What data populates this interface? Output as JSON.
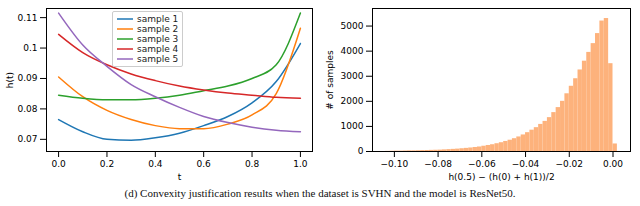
{
  "caption": "(d) Convexity justification results when the dataset is SVHN and the model is ResNet50.",
  "chart_data": [
    {
      "type": "line",
      "x_label": "t",
      "y_label": "h(t)",
      "x": [
        0,
        0.1,
        0.2,
        0.3,
        0.4,
        0.5,
        0.6,
        0.7,
        0.8,
        0.9,
        1.0
      ],
      "series": [
        {
          "name": "sample 1",
          "color": "#1f77b4",
          "values": [
            0.0765,
            0.0725,
            0.07,
            0.0697,
            0.0705,
            0.072,
            0.0745,
            0.0775,
            0.082,
            0.089,
            0.1015
          ]
        },
        {
          "name": "sample 2",
          "color": "#ff7f0e",
          "values": [
            0.0905,
            0.084,
            0.0795,
            0.0765,
            0.0745,
            0.0735,
            0.0735,
            0.075,
            0.078,
            0.085,
            0.1065
          ]
        },
        {
          "name": "sample 3",
          "color": "#2ca02c",
          "values": [
            0.0845,
            0.0835,
            0.083,
            0.083,
            0.0835,
            0.0845,
            0.086,
            0.0875,
            0.09,
            0.0945,
            0.1115
          ]
        },
        {
          "name": "sample 4",
          "color": "#d62728",
          "values": [
            0.1045,
            0.0985,
            0.0945,
            0.0915,
            0.0893,
            0.0875,
            0.0862,
            0.0852,
            0.0845,
            0.0838,
            0.0835
          ]
        },
        {
          "name": "sample 5",
          "color": "#9467bd",
          "values": [
            0.1115,
            0.101,
            0.094,
            0.088,
            0.084,
            0.0805,
            0.0775,
            0.0755,
            0.074,
            0.073,
            0.0725
          ]
        }
      ],
      "xlim": [
        -0.05,
        1.05
      ],
      "xticks": [
        {
          "value": 0,
          "label": "0.0"
        },
        {
          "value": 0.2,
          "label": "0.2"
        },
        {
          "value": 0.4,
          "label": "0.4"
        },
        {
          "value": 0.6,
          "label": "0.6"
        },
        {
          "value": 0.8,
          "label": "0.8"
        },
        {
          "value": 1.0,
          "label": "1.0"
        }
      ],
      "ylim": [
        0.066,
        0.113
      ],
      "yticks": [
        0.07,
        0.08,
        0.09,
        0.1,
        0.11
      ],
      "legend": "upper center",
      "grid": false
    },
    {
      "type": "histogram",
      "x_label": "h(0.5) − (h(0) + h(1))/2",
      "y_label": "# of samples",
      "bins": [
        -0.104,
        -0.102,
        -0.1,
        -0.098,
        -0.096,
        -0.094,
        -0.092,
        -0.09,
        -0.088,
        -0.086,
        -0.084,
        -0.082,
        -0.08,
        -0.078,
        -0.076,
        -0.074,
        -0.072,
        -0.07,
        -0.068,
        -0.066,
        -0.064,
        -0.062,
        -0.06,
        -0.058,
        -0.056,
        -0.054,
        -0.052,
        -0.05,
        -0.048,
        -0.046,
        -0.044,
        -0.042,
        -0.04,
        -0.038,
        -0.036,
        -0.034,
        -0.032,
        -0.03,
        -0.028,
        -0.026,
        -0.024,
        -0.022,
        -0.02,
        -0.018,
        -0.016,
        -0.014,
        -0.012,
        -0.01,
        -0.008,
        -0.006,
        -0.004,
        -0.002,
        0,
        0.002
      ],
      "values": [
        5,
        10,
        15,
        15,
        20,
        25,
        25,
        30,
        35,
        40,
        45,
        50,
        55,
        65,
        75,
        85,
        95,
        110,
        125,
        140,
        160,
        180,
        210,
        240,
        270,
        310,
        350,
        400,
        450,
        510,
        580,
        660,
        750,
        850,
        950,
        1080,
        1200,
        1350,
        1550,
        1750,
        2000,
        2300,
        2600,
        2900,
        3250,
        3600,
        3950,
        4300,
        4700,
        5200,
        5300,
        3500,
        300
      ],
      "color": "#fdb27c",
      "xlim": [
        -0.11,
        0.008
      ],
      "xticks": [
        {
          "value": -0.1,
          "label": "−0.10"
        },
        {
          "value": -0.08,
          "label": "−0.08"
        },
        {
          "value": -0.06,
          "label": "−0.06"
        },
        {
          "value": -0.04,
          "label": "−0.04"
        },
        {
          "value": -0.02,
          "label": "−0.02"
        },
        {
          "value": 0,
          "label": "0.00"
        }
      ],
      "ylim": [
        0,
        5700
      ],
      "yticks": [
        0,
        1000,
        2000,
        3000,
        4000,
        5000
      ],
      "grid": false
    }
  ]
}
